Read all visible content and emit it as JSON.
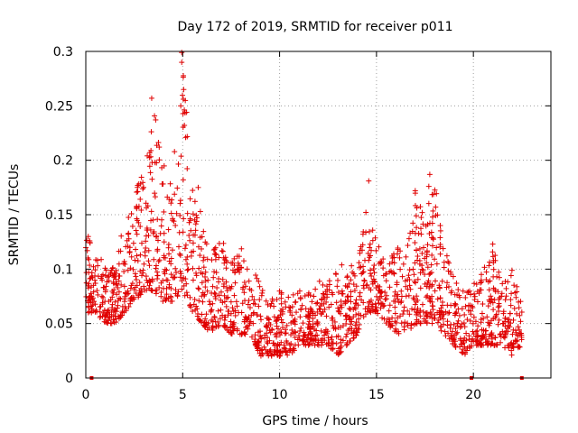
{
  "chart_data": {
    "type": "scatter",
    "title": "Day 172 of 2019, SRMTID for receiver p011",
    "xlabel": "GPS time / hours",
    "ylabel": "SRMTID / TECUs",
    "xlim": [
      0,
      24
    ],
    "ylim": [
      0,
      0.3
    ],
    "x_ticks": [
      0,
      5,
      10,
      15,
      20
    ],
    "x_tick_labels": [
      "0",
      "5",
      "10",
      "15",
      "20"
    ],
    "y_ticks": [
      0,
      0.05,
      0.1,
      0.15,
      0.2,
      0.25,
      0.3
    ],
    "y_tick_labels": [
      "0",
      "0.05",
      "0.1",
      "0.15",
      "0.2",
      "0.25",
      "0.3"
    ],
    "grid": true,
    "marker": "plus",
    "color": "#e00000",
    "gap_markers_x": [
      0.3,
      19.9,
      22.5
    ],
    "envelope_x": [
      0,
      0.5,
      1,
      1.5,
      2,
      2.5,
      3,
      3.5,
      4,
      4.5,
      5,
      5.5,
      6,
      6.5,
      7,
      7.5,
      8,
      8.5,
      9,
      9.5,
      10,
      10.5,
      11,
      11.5,
      12,
      12.5,
      13,
      13.5,
      14,
      14.5,
      15,
      15.5,
      16,
      16.5,
      17,
      17.5,
      18,
      18.5,
      19,
      19.5,
      20,
      20.5,
      21,
      21.5,
      22,
      22.5
    ],
    "envelope_low": [
      0.06,
      0.06,
      0.05,
      0.05,
      0.06,
      0.07,
      0.08,
      0.08,
      0.07,
      0.07,
      0.08,
      0.06,
      0.05,
      0.04,
      0.05,
      0.04,
      0.04,
      0.04,
      0.02,
      0.02,
      0.02,
      0.02,
      0.03,
      0.03,
      0.03,
      0.03,
      0.02,
      0.03,
      0.04,
      0.06,
      0.06,
      0.05,
      0.04,
      0.04,
      0.05,
      0.05,
      0.05,
      0.04,
      0.03,
      0.02,
      0.03,
      0.03,
      0.03,
      0.03,
      0.02,
      0.03
    ],
    "envelope_high": [
      0.14,
      0.11,
      0.11,
      0.1,
      0.15,
      0.17,
      0.19,
      0.26,
      0.2,
      0.21,
      0.3,
      0.18,
      0.15,
      0.12,
      0.13,
      0.11,
      0.12,
      0.1,
      0.09,
      0.07,
      0.08,
      0.08,
      0.08,
      0.08,
      0.09,
      0.09,
      0.1,
      0.11,
      0.1,
      0.18,
      0.13,
      0.11,
      0.12,
      0.13,
      0.17,
      0.15,
      0.19,
      0.12,
      0.1,
      0.08,
      0.09,
      0.1,
      0.12,
      0.09,
      0.1,
      0.07
    ],
    "highlighted_points": [
      {
        "x": 3.4,
        "y": 0.257
      },
      {
        "x": 4.95,
        "y": 0.299
      },
      {
        "x": 4.95,
        "y": 0.29
      },
      {
        "x": 5.05,
        "y": 0.265
      },
      {
        "x": 4.9,
        "y": 0.25
      },
      {
        "x": 14.6,
        "y": 0.181
      },
      {
        "x": 17.75,
        "y": 0.187
      },
      {
        "x": 17.7,
        "y": 0.176
      },
      {
        "x": 17.0,
        "y": 0.172
      },
      {
        "x": 21.0,
        "y": 0.123
      },
      {
        "x": 5.8,
        "y": 0.175
      },
      {
        "x": 3.3,
        "y": 0.207
      }
    ]
  }
}
